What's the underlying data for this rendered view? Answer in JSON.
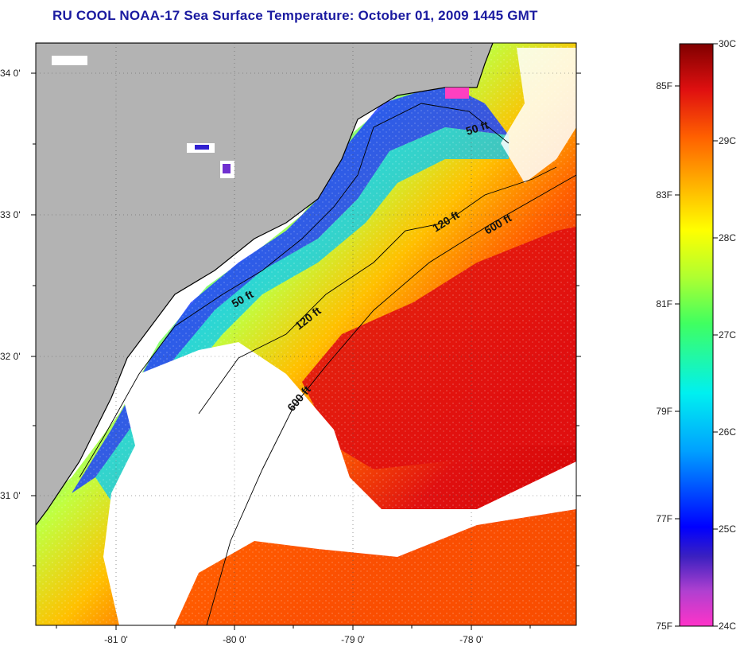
{
  "title": "RU COOL  NOAA-17  Sea Surface Temperature:  October 01, 2009 1445 GMT",
  "map": {
    "lat_ticks": [
      "34 0'",
      "33 0'",
      "32 0'",
      "31 0'"
    ],
    "lon_ticks": [
      "-81 0'",
      "-80 0'",
      "-79 0'",
      "-78 0'"
    ],
    "contours": [
      {
        "label": "50 ft"
      },
      {
        "label": "50 ft"
      },
      {
        "label": "120 ft"
      },
      {
        "label": "120 ft"
      },
      {
        "label": "600 ft"
      },
      {
        "label": "600 ft"
      }
    ],
    "colors": {
      "land": "#b3b3b3",
      "cloud": "#ffffff",
      "ocean_cold": "#1e4cff",
      "ocean_warm": "#e01010"
    }
  },
  "colorbar": {
    "f_labels": [
      "85F",
      "83F",
      "81F",
      "79F",
      "77F",
      "75F"
    ],
    "c_labels": [
      "30C",
      "29C",
      "28C",
      "27C",
      "26C",
      "25C",
      "24C"
    ]
  }
}
